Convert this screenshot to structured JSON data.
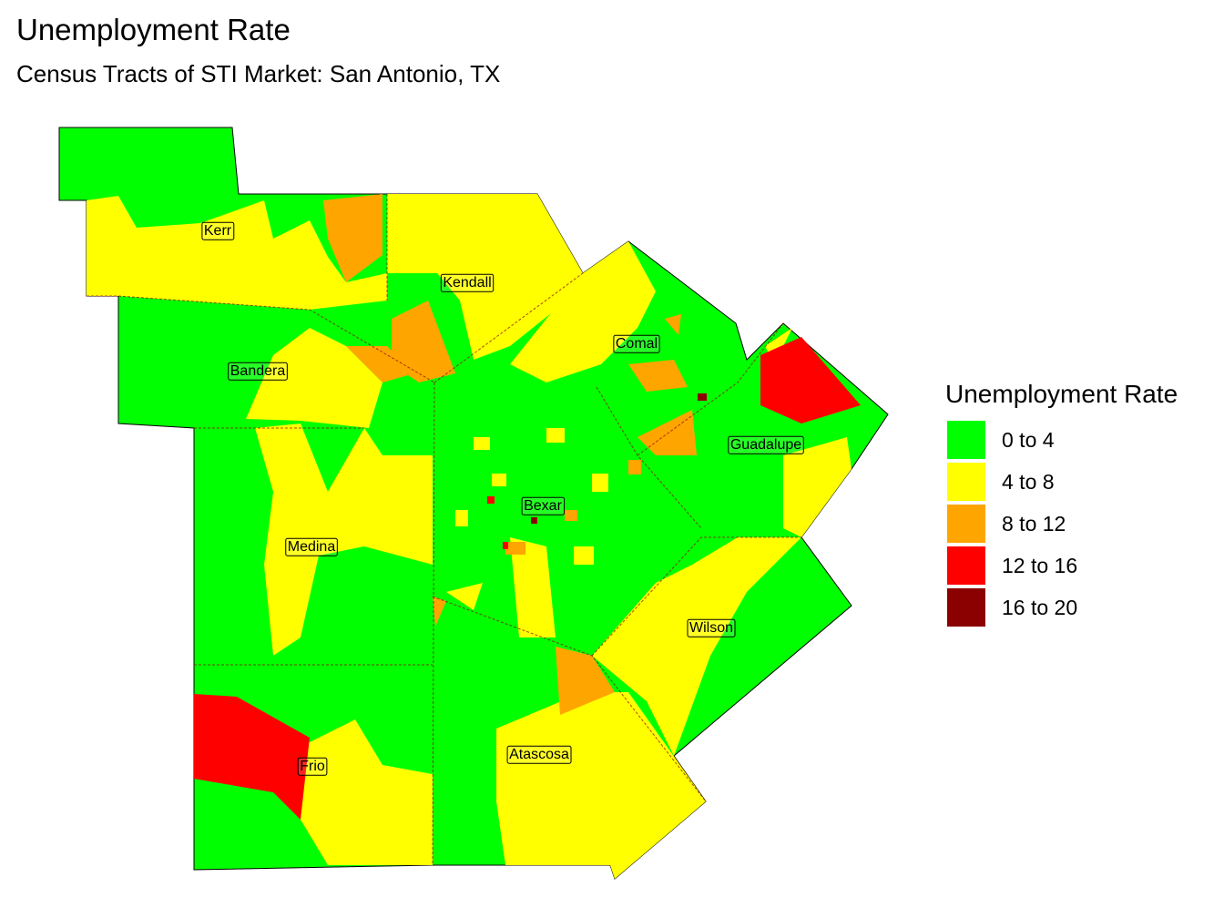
{
  "title": "Unemployment Rate",
  "subtitle": "Census Tracts of STI Market: San Antonio, TX",
  "legend": {
    "title": "Unemployment Rate",
    "items": [
      {
        "label": "0 to 4",
        "color": "#00ff00"
      },
      {
        "label": "4 to 8",
        "color": "#ffff00"
      },
      {
        "label": "8 to 12",
        "color": "#ffa500"
      },
      {
        "label": "12 to 16",
        "color": "#ff0000"
      },
      {
        "label": "16 to 20",
        "color": "#8b0000"
      }
    ]
  },
  "counties": [
    "Kerr",
    "Kendall",
    "Comal",
    "Bandera",
    "Guadalupe",
    "Bexar",
    "Medina",
    "Wilson",
    "Frio",
    "Atascosa"
  ]
}
